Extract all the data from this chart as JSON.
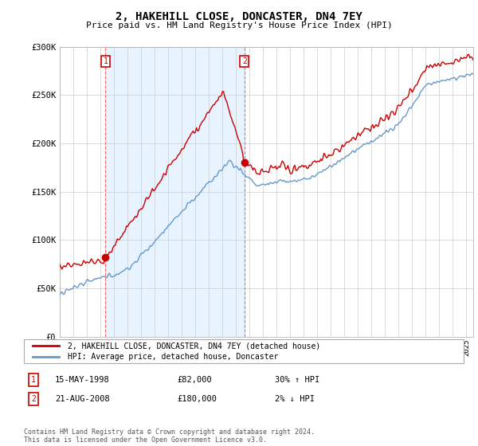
{
  "title": "2, HAKEHILL CLOSE, DONCASTER, DN4 7EY",
  "subtitle": "Price paid vs. HM Land Registry's House Price Index (HPI)",
  "ylim": [
    0,
    300000
  ],
  "yticks": [
    0,
    50000,
    100000,
    150000,
    200000,
    250000,
    300000
  ],
  "ytick_labels": [
    "£0",
    "£50K",
    "£100K",
    "£150K",
    "£200K",
    "£250K",
    "£300K"
  ],
  "sale1_year_f": 1998.37,
  "sale1_price": 82000,
  "sale1_date": "15-MAY-1998",
  "sale1_label": "30% ↑ HPI",
  "sale2_year_f": 2008.62,
  "sale2_price": 180000,
  "sale2_date": "21-AUG-2008",
  "sale2_label": "2% ↓ HPI",
  "legend_line1": "2, HAKEHILL CLOSE, DONCASTER, DN4 7EY (detached house)",
  "legend_line2": "HPI: Average price, detached house, Doncaster",
  "footer": "Contains HM Land Registry data © Crown copyright and database right 2024.\nThis data is licensed under the Open Government Licence v3.0.",
  "red_color": "#cc0000",
  "blue_color": "#6699cc",
  "fill_color": "#ddeeff",
  "dashed_color": "#ff6666",
  "background_color": "#ffffff",
  "grid_color": "#cccccc",
  "xmin": 1995.0,
  "xmax": 2025.5
}
